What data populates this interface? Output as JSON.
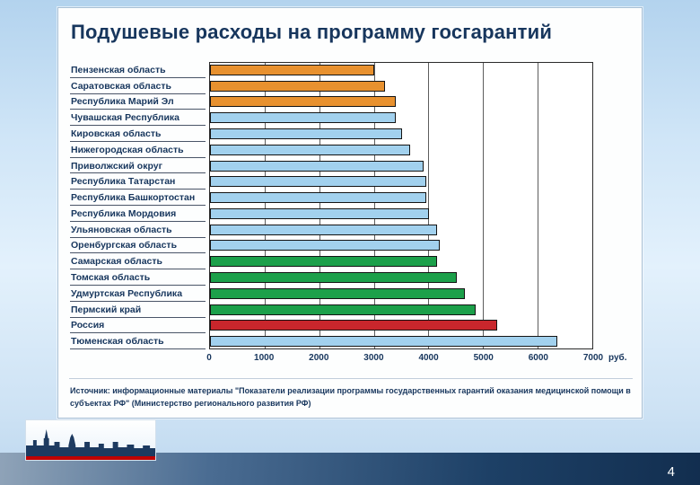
{
  "slide": {
    "title": "Подушевые расходы на программу госгарантий",
    "page_number": "4",
    "source": "Источник: информационные материалы \"Показатели реализации программы государственных гарантий оказания медицинской помощи в субъектах РФ\" (Министерство регионального развития РФ)"
  },
  "chart_data": {
    "type": "bar",
    "orientation": "horizontal",
    "title": "Подушевые расходы на программу госгарантий",
    "categories": [
      "Пензенская область",
      "Саратовская область",
      "Республика Марий Эл",
      "Чувашская Республика",
      "Кировская область",
      "Нижегородская область",
      "Приволжский округ",
      "Республика Татарстан",
      "Республика Башкортостан",
      "Республика Мордовия",
      "Ульяновская область",
      "Оренбургская область",
      "Самарская область",
      "Томская область",
      "Удмуртская Республика",
      "Пермский край",
      "Россия",
      "Тюменская область"
    ],
    "values": [
      3000,
      3200,
      3400,
      3400,
      3500,
      3650,
      3900,
      3950,
      3950,
      4000,
      4150,
      4200,
      4150,
      4500,
      4650,
      4850,
      5250,
      6350
    ],
    "bar_colors": [
      "orange",
      "orange",
      "orange",
      "lightblue",
      "lightblue",
      "lightblue",
      "lightblue",
      "lightblue",
      "lightblue",
      "lightblue",
      "lightblue",
      "lightblue",
      "green",
      "green",
      "green",
      "green",
      "red",
      "lightblue"
    ],
    "palette": {
      "orange": "#E8912F",
      "lightblue": "#A2D1EE",
      "green": "#1CA04A",
      "red": "#C9262C"
    },
    "xlim": [
      0,
      7000
    ],
    "x_ticks": [
      "0",
      "1000",
      "2000",
      "3000",
      "4000",
      "5000",
      "6000",
      "7000"
    ],
    "x_unit": "руб.",
    "grid": "vertical",
    "legend": "none"
  },
  "theme": {
    "title_color": "#17365D",
    "background_blue": "#C9E0F5",
    "footer_dark_blue": "#16355B",
    "accent_red": "#C00000"
  }
}
